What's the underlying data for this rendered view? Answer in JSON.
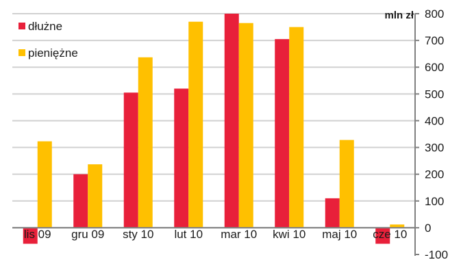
{
  "chart_data": {
    "type": "bar",
    "unit_label": "mln zł",
    "categories": [
      "lis 09",
      "gru 09",
      "sty 10",
      "lut 10",
      "mar 10",
      "kwi 10",
      "maj 10",
      "cze 10"
    ],
    "series": [
      {
        "name": "dłużne",
        "color": "#e8203a",
        "values": [
          -60,
          200,
          505,
          520,
          800,
          705,
          110,
          -60
        ]
      },
      {
        "name": "pieniężne",
        "color": "#ffc000",
        "values": [
          323,
          237,
          637,
          770,
          765,
          750,
          328,
          12
        ]
      }
    ],
    "ylim": [
      -100,
      800
    ],
    "yticks": [
      800,
      700,
      600,
      500,
      400,
      300,
      200,
      100,
      0,
      -100
    ],
    "legend_position": "top-left",
    "grid": true
  }
}
